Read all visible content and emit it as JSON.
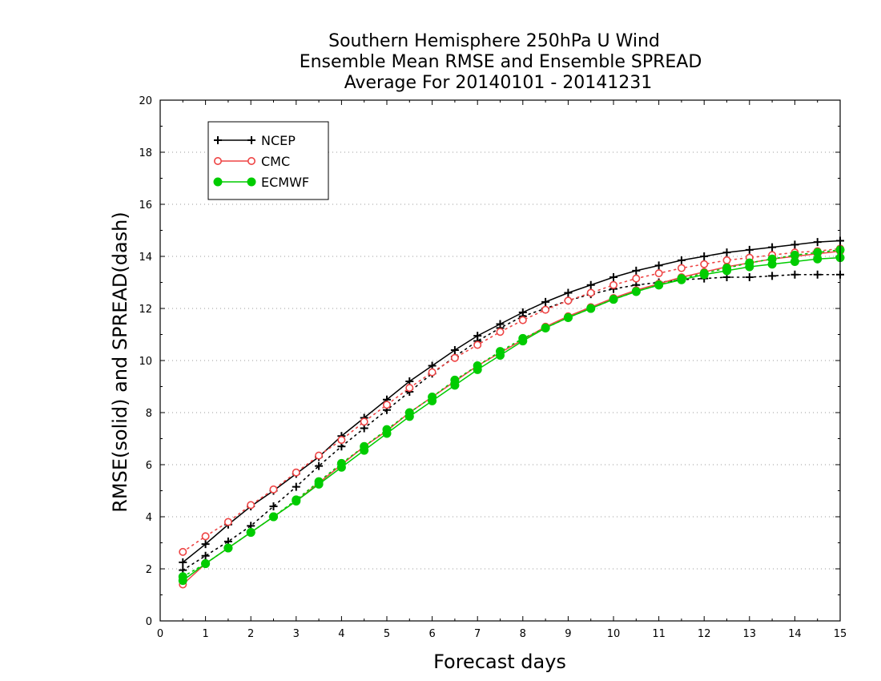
{
  "chart_data": {
    "type": "line",
    "title": [
      "Southern Hemisphere 250hPa U Wind",
      "Ensemble Mean RMSE and Ensemble SPREAD",
      "Average For 20140101 - 20141231"
    ],
    "xlabel": "Forecast days",
    "ylabel": "RMSE(solid) and SPREAD(dash)",
    "xlim": [
      0,
      15
    ],
    "ylim": [
      0,
      20
    ],
    "xticks": [
      "0",
      "1",
      "2",
      "3",
      "4",
      "5",
      "6",
      "7",
      "8",
      "9",
      "10",
      "11",
      "12",
      "13",
      "14",
      "15"
    ],
    "yticks": [
      "0",
      "2",
      "4",
      "6",
      "8",
      "10",
      "12",
      "14",
      "16",
      "18",
      "20"
    ],
    "grid": "horizontal dotted",
    "legend_position": "top-left",
    "x": [
      0.5,
      1,
      1.5,
      2,
      2.5,
      3,
      3.5,
      4,
      4.5,
      5,
      5.5,
      6,
      6.5,
      7,
      7.5,
      8,
      8.5,
      9,
      9.5,
      10,
      10.5,
      11,
      11.5,
      12,
      12.5,
      13,
      13.5,
      14,
      14.5,
      15
    ],
    "series": [
      {
        "name": "NCEP",
        "color": "#000000",
        "marker": "plus",
        "rmse": [
          2.25,
          2.95,
          3.7,
          4.4,
          5.0,
          5.65,
          6.3,
          7.1,
          7.8,
          8.5,
          9.2,
          9.8,
          10.4,
          10.95,
          11.4,
          11.85,
          12.25,
          12.6,
          12.9,
          13.2,
          13.45,
          13.65,
          13.85,
          14.0,
          14.15,
          14.25,
          14.35,
          14.45,
          14.55,
          14.6
        ],
        "spread": [
          1.95,
          2.5,
          3.05,
          3.65,
          4.4,
          5.15,
          5.95,
          6.7,
          7.4,
          8.1,
          8.8,
          9.5,
          10.15,
          10.75,
          11.25,
          11.7,
          12.0,
          12.3,
          12.55,
          12.75,
          12.9,
          13.0,
          13.1,
          13.15,
          13.2,
          13.2,
          13.25,
          13.3,
          13.3,
          13.3
        ]
      },
      {
        "name": "CMC",
        "color": "#ee4444",
        "marker": "open-circle",
        "rmse": [
          1.4,
          2.2,
          2.8,
          3.4,
          4.0,
          4.6,
          5.3,
          6.0,
          6.7,
          7.3,
          8.0,
          8.6,
          9.2,
          9.8,
          10.3,
          10.8,
          11.3,
          11.7,
          12.05,
          12.4,
          12.7,
          12.95,
          13.2,
          13.4,
          13.6,
          13.75,
          13.9,
          14.0,
          14.1,
          14.2
        ],
        "spread": [
          2.65,
          3.25,
          3.8,
          4.45,
          5.05,
          5.7,
          6.35,
          6.95,
          7.65,
          8.3,
          8.95,
          9.55,
          10.1,
          10.6,
          11.1,
          11.55,
          11.95,
          12.3,
          12.6,
          12.9,
          13.15,
          13.35,
          13.55,
          13.7,
          13.85,
          13.95,
          14.05,
          14.15,
          14.2,
          14.3
        ]
      },
      {
        "name": "ECMWF",
        "color": "#00cc00",
        "marker": "filled-circle",
        "rmse": [
          1.55,
          2.2,
          2.8,
          3.4,
          4.0,
          4.6,
          5.25,
          5.9,
          6.55,
          7.2,
          7.85,
          8.45,
          9.05,
          9.65,
          10.2,
          10.75,
          11.25,
          11.65,
          12.0,
          12.35,
          12.65,
          12.9,
          13.1,
          13.3,
          13.45,
          13.6,
          13.7,
          13.8,
          13.9,
          13.95
        ],
        "spread": [
          1.7,
          2.2,
          2.8,
          3.4,
          4.0,
          4.65,
          5.35,
          6.05,
          6.7,
          7.35,
          8.0,
          8.6,
          9.25,
          9.8,
          10.35,
          10.85,
          11.25,
          11.65,
          12.0,
          12.35,
          12.65,
          12.9,
          13.15,
          13.35,
          13.55,
          13.75,
          13.9,
          14.05,
          14.15,
          14.25
        ]
      }
    ]
  }
}
